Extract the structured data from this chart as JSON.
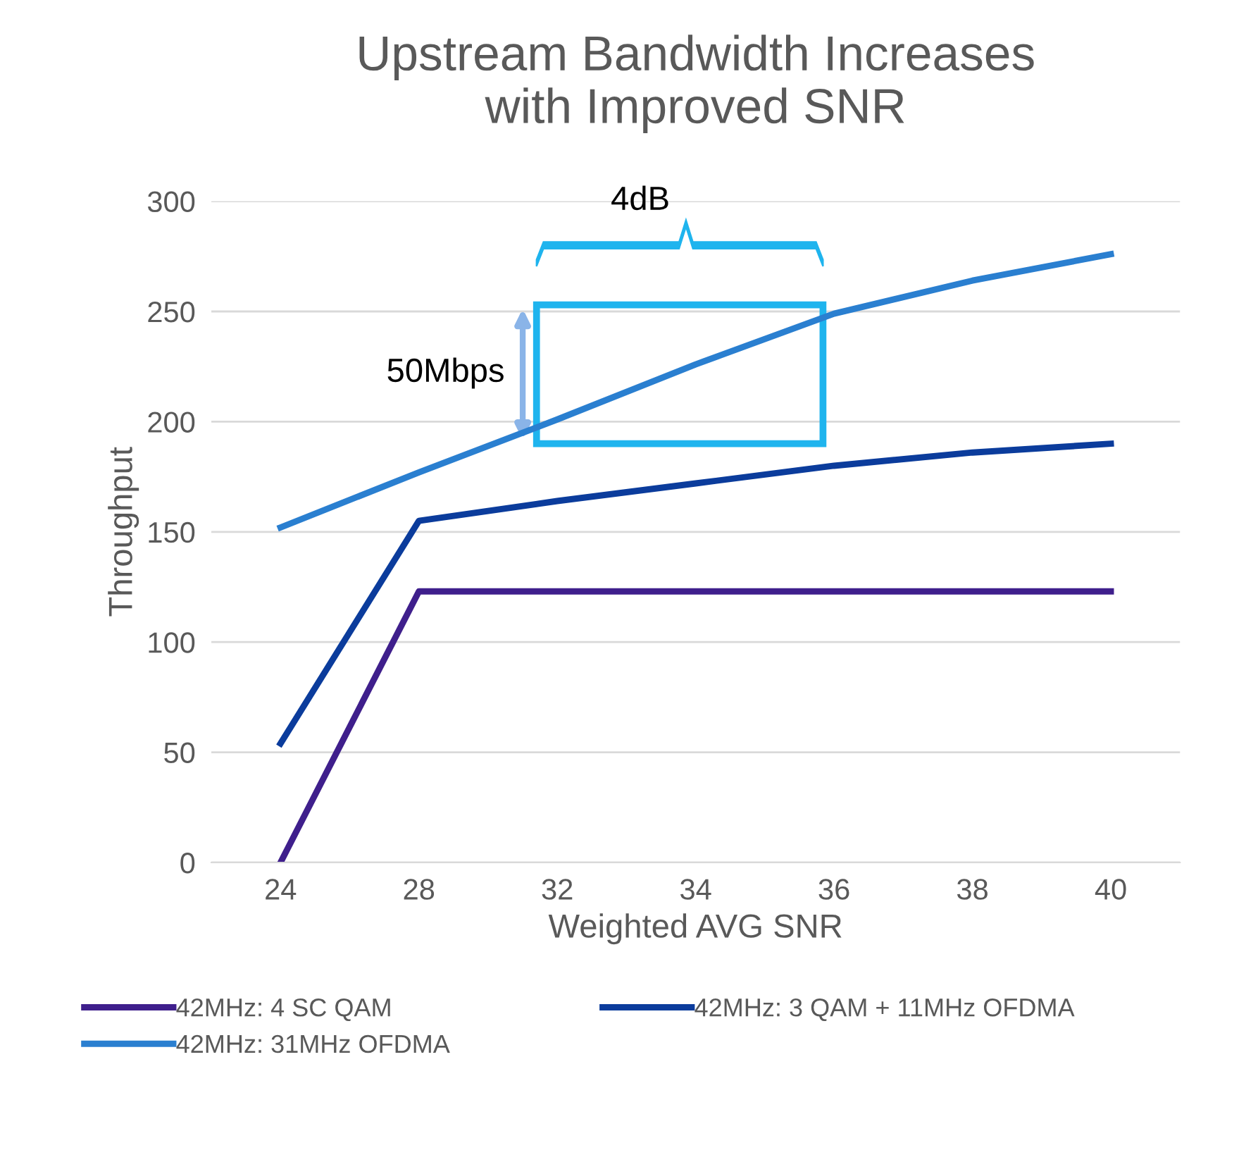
{
  "chart_data": {
    "type": "line",
    "title": "Upstream Bandwidth Increases\nwith Improved SNR",
    "xlabel": "Weighted AVG SNR",
    "ylabel": "Throughput",
    "categories": [
      "24",
      "28",
      "32",
      "34",
      "36",
      "38",
      "40"
    ],
    "series": [
      {
        "name": "42MHz: 4 SC QAM",
        "color": "#3f1f8c",
        "values": [
          0,
          123,
          123,
          123,
          123,
          123,
          123
        ]
      },
      {
        "name": "42MHz: 3 QAM + 11MHz OFDMA",
        "color": "#0b3c9c",
        "values": [
          54,
          155,
          164,
          172,
          180,
          186,
          190
        ]
      },
      {
        "name": "42MHz: 31MHz OFDMA",
        "color": "#2a7fd0",
        "values": [
          152,
          177,
          201,
          226,
          249,
          264,
          276
        ]
      }
    ],
    "ylim": [
      0,
      300
    ],
    "yticks": [
      0,
      50,
      100,
      150,
      200,
      250,
      300
    ],
    "grid": "y",
    "legend": "bottom",
    "marker": "none",
    "line_style": "solid",
    "annotations": [
      "4dB",
      "50Mbps"
    ]
  }
}
